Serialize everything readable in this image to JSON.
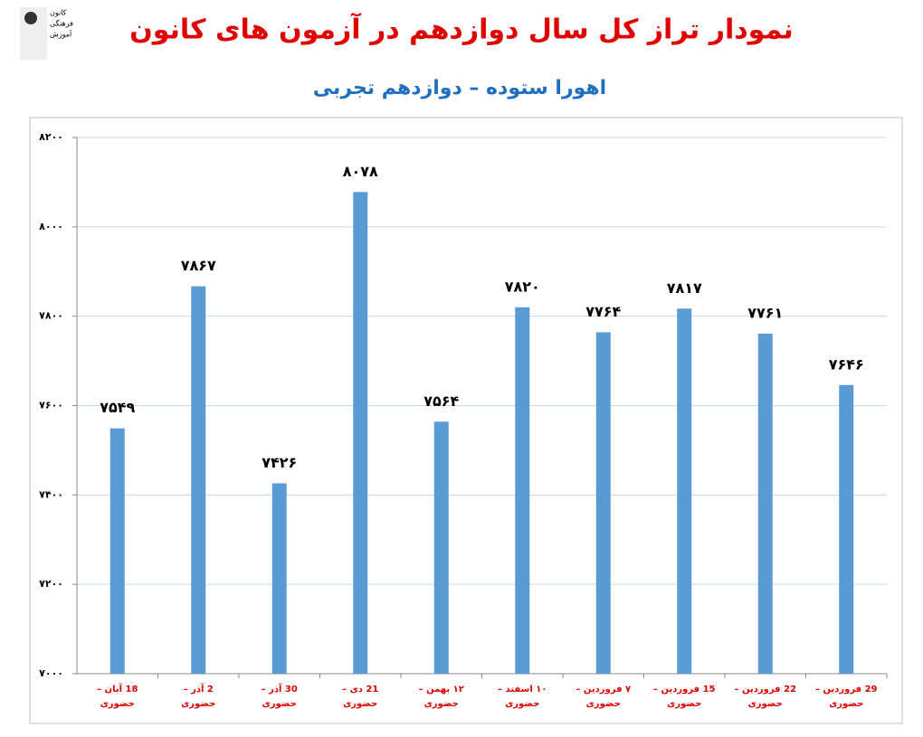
{
  "logo": [
    "کانون",
    "فرهنگی",
    "آموزش"
  ],
  "chart_data": {
    "type": "bar",
    "title": "نمودار تراز کل سال دوازدهم در آزمون های کانون",
    "subtitle": "اهورا ستوده – دوازدهم تجربی",
    "categories": [
      "18 آبان – حضوری",
      "2 آذر – حضوری",
      "30 آذر – حضوری",
      "21 دی – حضوری",
      "۱۲ بهمن – حضوری",
      "۱۰ اسفند – حضوری",
      "۷ فروردین – حضوری",
      "15 فروردین – حضوری",
      "22 فروردین – حضوری",
      "29 فروردین – حضوری"
    ],
    "values": [
      7549,
      7867,
      7426,
      8078,
      7564,
      7820,
      7764,
      7817,
      7761,
      7646
    ],
    "value_labels": [
      "۷۵۴۹",
      "۷۸۶۷",
      "۷۴۲۶",
      "۸۰۷۸",
      "۷۵۶۴",
      "۷۸۲۰",
      "۷۷۶۴",
      "۷۸۱۷",
      "۷۷۶۱",
      "۷۶۴۶"
    ],
    "color": "#5b9bd5",
    "ylim": [
      7000,
      8200
    ],
    "yticks": [
      {
        "value": 7000,
        "label": "۷۰۰۰"
      },
      {
        "value": 7200,
        "label": "۷۲۰۰"
      },
      {
        "value": 7400,
        "label": "۷۴۰۰"
      },
      {
        "value": 7600,
        "label": "۷۶۰۰"
      },
      {
        "value": 7800,
        "label": "۷۸۰۰"
      },
      {
        "value": 8000,
        "label": "۸۰۰۰"
      },
      {
        "value": 8200,
        "label": "۸۲۰۰"
      }
    ],
    "grid": true
  }
}
